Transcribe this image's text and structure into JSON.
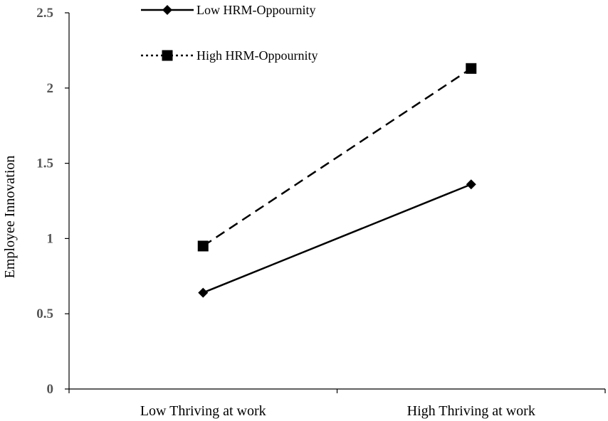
{
  "chart_data": {
    "type": "line",
    "categories": [
      "Low Thriving at work",
      "High Thriving at work"
    ],
    "ylabel": "Employee Innovation",
    "xlabel": "",
    "ylim": [
      0,
      2.5
    ],
    "yticks": [
      "0",
      "0.5",
      "1",
      "1.5",
      "2",
      "2.5"
    ],
    "grid": false,
    "legend_position": "top-center",
    "series": [
      {
        "name": "Low HRM-Oppournity",
        "values": [
          0.64,
          1.36
        ],
        "marker": "diamond",
        "line_style": "solid",
        "legend_line_style": "solid",
        "color": "#000000"
      },
      {
        "name": "High HRM-Oppournity",
        "values": [
          0.95,
          2.13
        ],
        "marker": "square",
        "line_style": "dashed",
        "legend_line_style": "dotted",
        "color": "#000000"
      }
    ]
  }
}
